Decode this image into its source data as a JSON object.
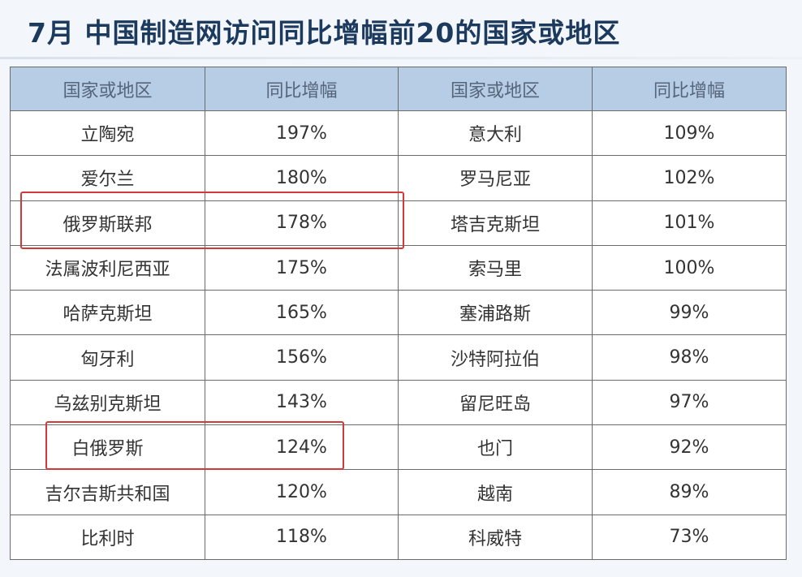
{
  "title": "7月 中国制造网访问同比增幅前20的国家或地区",
  "headers": [
    "国家或地区",
    "同比增幅",
    "国家或地区",
    "同比增幅"
  ],
  "rows": [
    [
      "立陶宛",
      "197%",
      "意大利",
      "109%"
    ],
    [
      "爱尔兰",
      "180%",
      "罗马尼亚",
      "102%"
    ],
    [
      "俄罗斯联邦",
      "178%",
      "塔吉克斯坦",
      "101%"
    ],
    [
      "法属波利尼西亚",
      "175%",
      "索马里",
      "100%"
    ],
    [
      "哈萨克斯坦",
      "165%",
      "塞浦路斯",
      "99%"
    ],
    [
      "匈牙利",
      "156%",
      "沙特阿拉伯",
      "98%"
    ],
    [
      "乌兹别克斯坦",
      "143%",
      "留尼旺岛",
      "97%"
    ],
    [
      "白俄罗斯",
      "124%",
      "也门",
      "92%"
    ],
    [
      "吉尔吉斯共和国",
      "120%",
      "越南",
      "89%"
    ],
    [
      "比利时",
      "118%",
      "科威特",
      "73%"
    ]
  ],
  "colors": {
    "header_bg": "#b7cde6",
    "title": "#1c3a5e",
    "highlight": "#d23a3a"
  }
}
